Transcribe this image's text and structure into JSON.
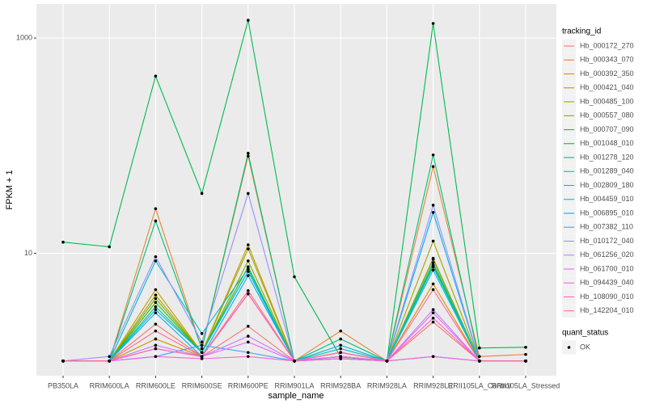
{
  "chart_data": {
    "type": "line",
    "log_scale": true,
    "grid": true,
    "x_label": "sample_name",
    "y_label": "FPKM + 1",
    "categories": [
      "PB350LA",
      "RRIM600LA",
      "RRIM600LE",
      "RRIM600SE",
      "RRIM600PE",
      "RRIM901LA",
      "RRIM928BA",
      "RRIM928LA",
      "RRIM928LE",
      "RRII105LA_Control",
      "RRII105LA_Stressed"
    ],
    "ylim": [
      0.73,
      2070
    ],
    "yticks": [
      10,
      1000
    ],
    "legend_title": "tracking_id",
    "shape_legend": {
      "title": "quant_status",
      "labels": [
        "OK"
      ]
    },
    "series": [
      {
        "name": "Hb_000172_270",
        "color": "#F8766D",
        "values": [
          1,
          1,
          2.2,
          1.1,
          2.1,
          1,
          1.05,
          1,
          2.3,
          1,
          1
        ]
      },
      {
        "name": "Hb_000343_070",
        "color": "#EA8331",
        "values": [
          1,
          1,
          26,
          1.3,
          80,
          1,
          1.9,
          1,
          64,
          1.1,
          1.15
        ]
      },
      {
        "name": "Hb_000392_350",
        "color": "#D89000",
        "values": [
          1,
          1,
          1.6,
          1.1,
          4.2,
          1,
          1.1,
          1,
          5.2,
          1,
          1
        ]
      },
      {
        "name": "Hb_000421_040",
        "color": "#C09B00",
        "values": [
          1,
          1,
          4.6,
          1.2,
          12,
          1,
          1.1,
          1,
          9,
          1,
          1
        ]
      },
      {
        "name": "Hb_000485_100",
        "color": "#A3A500",
        "values": [
          1,
          1,
          4.1,
          1.2,
          11,
          1,
          1.1,
          1,
          13,
          1,
          1
        ]
      },
      {
        "name": "Hb_000557_080",
        "color": "#7CAE00",
        "values": [
          1,
          1,
          3.8,
          1.2,
          8.5,
          1,
          1.1,
          1,
          8.8,
          1,
          1
        ]
      },
      {
        "name": "Hb_000707_090",
        "color": "#39B600",
        "values": [
          1,
          1,
          3.5,
          1.2,
          7.5,
          1,
          1.1,
          1,
          7.8,
          1,
          1
        ]
      },
      {
        "name": "Hb_001048_010",
        "color": "#00BB4E",
        "values": [
          12.7,
          11.5,
          443,
          36,
          1463,
          6.05,
          1.09,
          1,
          1366,
          1.32,
          1.34
        ]
      },
      {
        "name": "Hb_001278_120",
        "color": "#00BF7D",
        "values": [
          1,
          1,
          20,
          1.3,
          85,
          1,
          1.6,
          1,
          82,
          1,
          1
        ]
      },
      {
        "name": "Hb_001289_040",
        "color": "#00C1A3",
        "values": [
          1,
          1,
          3.2,
          1.2,
          6.8,
          1,
          1.1,
          1,
          7.5,
          1,
          1
        ]
      },
      {
        "name": "Hb_002809_180",
        "color": "#00BFC4",
        "values": [
          1,
          1,
          8.5,
          1.8,
          7.2,
          1,
          1.3,
          1,
          8.2,
          1,
          1
        ]
      },
      {
        "name": "Hb_004459_010",
        "color": "#00BAE0",
        "values": [
          1,
          1,
          3,
          1.2,
          6.8,
          1,
          1.4,
          1,
          7,
          1,
          1
        ]
      },
      {
        "name": "Hb_006895_010",
        "color": "#00B0F6",
        "values": [
          1,
          1,
          2.8,
          1.1,
          6.2,
          1,
          1.2,
          1,
          24,
          1,
          1
        ]
      },
      {
        "name": "Hb_007382_110",
        "color": "#35A2FF",
        "values": [
          1,
          1,
          1.1,
          1.4,
          1.2,
          1,
          1.05,
          1,
          1.1,
          1,
          1
        ]
      },
      {
        "name": "Hb_010172_040",
        "color": "#9590FF",
        "values": [
          1,
          1.1,
          9.3,
          1.5,
          36,
          1,
          1.2,
          1,
          28,
          1,
          1
        ]
      },
      {
        "name": "Hb_061256_020",
        "color": "#C77CFF",
        "values": [
          1,
          1,
          1.4,
          1.1,
          1.7,
          1,
          1.1,
          1,
          3,
          1,
          1
        ]
      },
      {
        "name": "Hb_061700_010",
        "color": "#E76BF3",
        "values": [
          1,
          1,
          1.3,
          1.1,
          1.5,
          1,
          1.1,
          1,
          2.8,
          1,
          1
        ]
      },
      {
        "name": "Hb_094439_040",
        "color": "#FA62DB",
        "values": [
          1,
          1,
          1.1,
          1.05,
          1.1,
          1,
          1.05,
          1,
          1.1,
          1,
          1
        ]
      },
      {
        "name": "Hb_108090_010",
        "color": "#FF62BC",
        "values": [
          1,
          1,
          1.3,
          1.1,
          4.2,
          1,
          1.2,
          1,
          2.5,
          1,
          1
        ]
      },
      {
        "name": "Hb_142204_010",
        "color": "#FF6C91",
        "values": [
          1,
          1,
          1.9,
          1.1,
          4.5,
          1,
          1.2,
          1,
          4.6,
          1,
          1
        ]
      }
    ]
  }
}
